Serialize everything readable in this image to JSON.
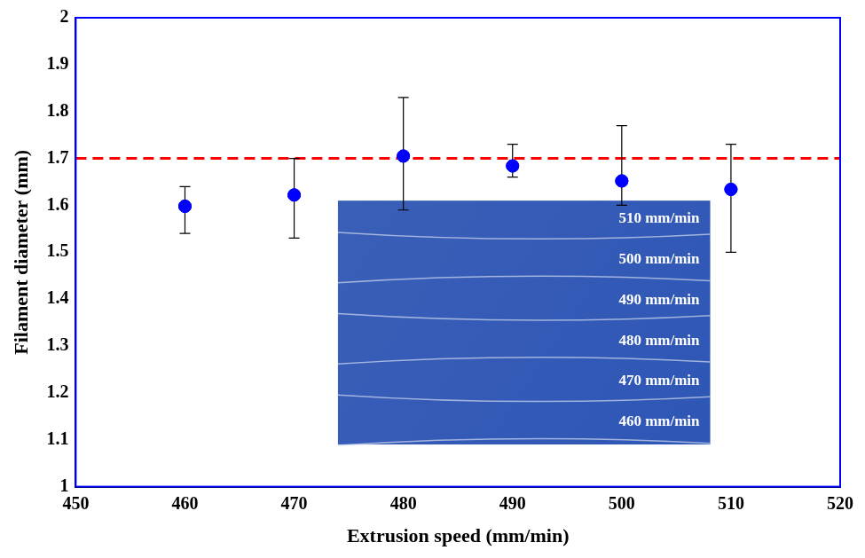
{
  "chart_data": {
    "type": "scatter",
    "x_label": "Extrusion speed (mm/min)",
    "y_label": "Filament diameter (mm)",
    "x": [
      460,
      470,
      480,
      490,
      500,
      510
    ],
    "values": [
      1.598,
      1.622,
      1.705,
      1.684,
      1.652,
      1.634
    ],
    "error_low": [
      1.54,
      1.53,
      1.59,
      1.66,
      1.6,
      1.5
    ],
    "error_high": [
      1.64,
      1.7,
      1.83,
      1.73,
      1.77,
      1.73
    ],
    "color": "#0000ff",
    "marker": "circle",
    "reference_line": {
      "value": 1.7,
      "color": "#ff0000",
      "line_style": "dashed"
    },
    "annotations": [
      "510 mm/min",
      "500 mm/min",
      "490 mm/min",
      "480 mm/min",
      "470 mm/min",
      "460 mm/min"
    ],
    "xlim": [
      450,
      520
    ],
    "xticks": [
      450,
      460,
      470,
      480,
      490,
      500,
      510,
      520
    ],
    "ylim": [
      1,
      2
    ],
    "yticks": [
      1,
      1.1,
      1.2,
      1.3,
      1.4,
      1.5,
      1.6,
      1.7,
      1.8,
      1.9,
      2
    ],
    "grid": false
  }
}
